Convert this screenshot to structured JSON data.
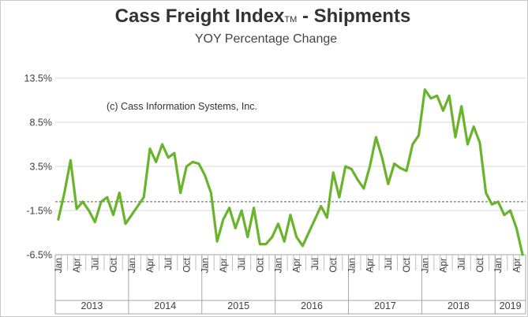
{
  "chart_data": {
    "type": "line",
    "title": "Cass Freight Index",
    "title_tm": "TM",
    "title_suffix": " - Shipments",
    "subtitle": "YOY Percentage Change",
    "annotation": "(c) Cass Information Systems, Inc.",
    "ylim": [
      -6.5,
      13.5
    ],
    "yticks": [
      13.5,
      8.5,
      3.5,
      -1.5,
      -6.5
    ],
    "ytick_labels": [
      "13.5%",
      "8.5%",
      "3.5%",
      "-1.5%",
      "-6.5%"
    ],
    "reference_line": -0.5,
    "grid": true,
    "month_tick_labels": [
      "Jan",
      "Apr",
      "Jul",
      "Oct"
    ],
    "years": [
      {
        "label": "2013",
        "months": 12
      },
      {
        "label": "2014",
        "months": 12
      },
      {
        "label": "2015",
        "months": 12
      },
      {
        "label": "2016",
        "months": 12
      },
      {
        "label": "2017",
        "months": 12
      },
      {
        "label": "2018",
        "months": 12
      },
      {
        "label": "2019",
        "months": 5
      }
    ],
    "series": [
      {
        "color": "#6ab42d",
        "values": [
          -2.5,
          0.5,
          4.2,
          -1.3,
          -0.5,
          -1.5,
          -2.8,
          -0.5,
          0.0,
          -2.0,
          0.5,
          -3.0,
          -2.0,
          -1.0,
          0.0,
          5.5,
          4.0,
          6.0,
          4.5,
          5.0,
          0.5,
          3.5,
          4.0,
          3.8,
          2.5,
          0.5,
          -5.0,
          -2.5,
          -1.2,
          -3.5,
          -1.5,
          -4.5,
          -1.2,
          -5.3,
          -5.3,
          -4.5,
          -3.0,
          -5.0,
          -2.0,
          -4.5,
          -5.5,
          -4.0,
          -2.5,
          -1.0,
          -2.3,
          2.8,
          0.0,
          3.5,
          3.2,
          2.0,
          1.0,
          3.5,
          6.8,
          4.5,
          1.5,
          3.8,
          3.3,
          3.0,
          6.0,
          7.0,
          12.2,
          11.2,
          11.5,
          9.8,
          11.5,
          6.8,
          10.3,
          6.0,
          8.0,
          6.2,
          0.5,
          -0.8,
          -0.5,
          -2.0,
          -1.5,
          -3.5,
          -6.5
        ]
      }
    ]
  }
}
